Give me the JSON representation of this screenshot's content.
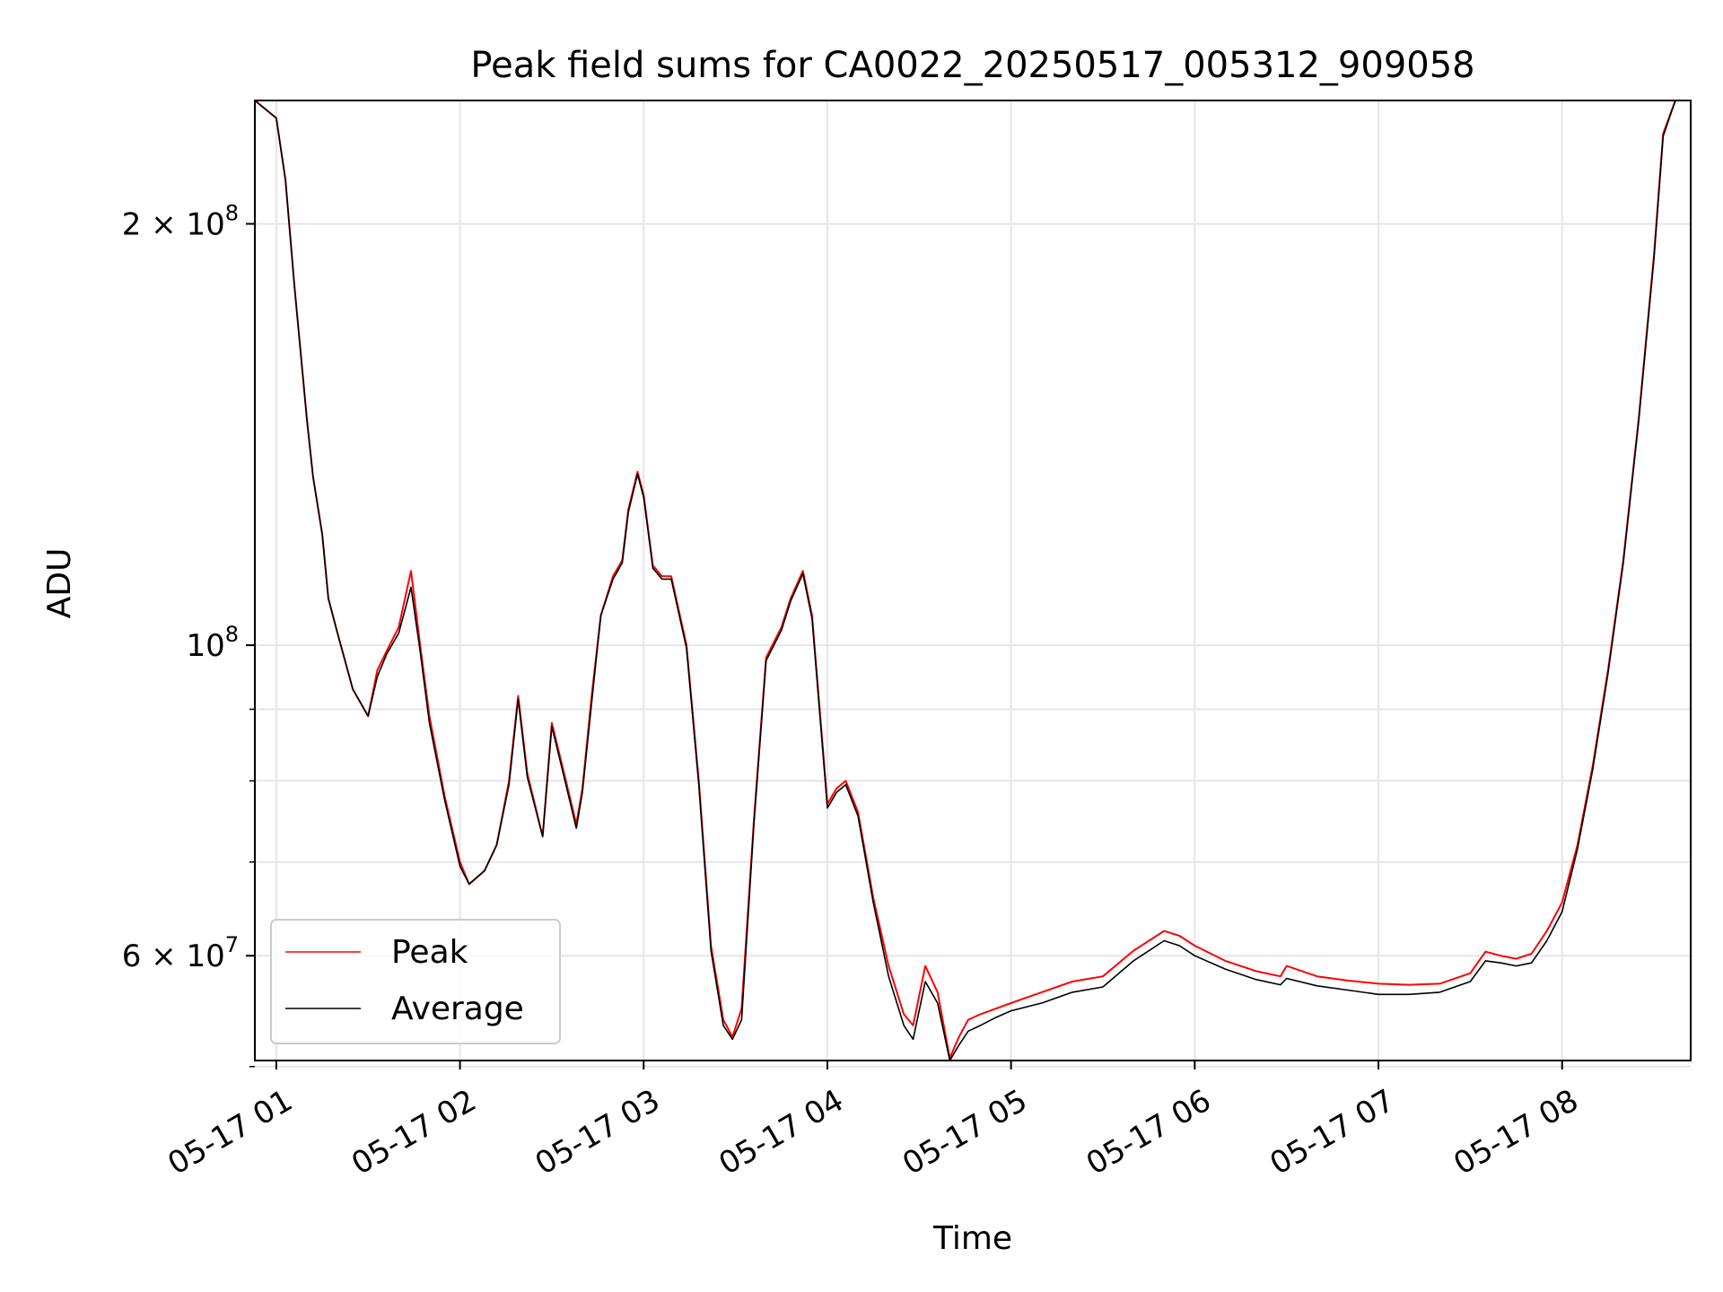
{
  "chart_data": {
    "type": "line",
    "title": "Peak field sums for CA0022_20250517_005312_909058",
    "xlabel": "Time",
    "ylabel": "ADU",
    "yscale": "log",
    "ylim": [
      50500000,
      245000000
    ],
    "xlim_hours": [
      "05-17 00:53",
      "05-17 08:42"
    ],
    "grid": true,
    "legend_position": "lower-left",
    "x_ticks": [
      "05-17 01",
      "05-17 02",
      "05-17 03",
      "05-17 04",
      "05-17 05",
      "05-17 06",
      "05-17 07",
      "05-17 08"
    ],
    "y_ticks_major": [
      {
        "base": "2",
        "exp": "8",
        "value": 200000000
      },
      {
        "base": "",
        "exp": "8",
        "value": 100000000
      },
      {
        "base": "6",
        "exp": "7",
        "value": 60000000
      }
    ],
    "y_ticks_minor": [
      50000000,
      70000000,
      80000000,
      90000000
    ],
    "series": [
      {
        "name": "Peak",
        "color": "#ff0000",
        "x": [
          "05-17 00:53",
          "05-17 01:00",
          "05-17 01:03",
          "05-17 01:06",
          "05-17 01:10",
          "05-17 01:12",
          "05-17 01:15",
          "05-17 01:17",
          "05-17 01:20",
          "05-17 01:25",
          "05-17 01:30",
          "05-17 01:33",
          "05-17 01:36",
          "05-17 01:40",
          "05-17 01:44",
          "05-17 01:47",
          "05-17 01:50",
          "05-17 01:55",
          "05-17 02:00",
          "05-17 02:03",
          "05-17 02:08",
          "05-17 02:12",
          "05-17 02:16",
          "05-17 02:19",
          "05-17 02:22",
          "05-17 02:27",
          "05-17 02:30",
          "05-17 02:34",
          "05-17 02:38",
          "05-17 02:40",
          "05-17 02:43",
          "05-17 02:46",
          "05-17 02:50",
          "05-17 02:53",
          "05-17 02:55",
          "05-17 02:58",
          "05-17 03:00",
          "05-17 03:03",
          "05-17 03:06",
          "05-17 03:09",
          "05-17 03:14",
          "05-17 03:18",
          "05-17 03:22",
          "05-17 03:26",
          "05-17 03:29",
          "05-17 03:32",
          "05-17 03:36",
          "05-17 03:40",
          "05-17 03:45",
          "05-17 03:48",
          "05-17 03:52",
          "05-17 03:55",
          "05-17 04:00",
          "05-17 04:03",
          "05-17 04:06",
          "05-17 04:10",
          "05-17 04:15",
          "05-17 04:20",
          "05-17 04:25",
          "05-17 04:28",
          "05-17 04:32",
          "05-17 04:36",
          "05-17 04:40",
          "05-17 04:43",
          "05-17 04:46",
          "05-17 04:50",
          "05-17 04:55",
          "05-17 05:00",
          "05-17 05:10",
          "05-17 05:20",
          "05-17 05:30",
          "05-17 05:40",
          "05-17 05:50",
          "05-17 05:55",
          "05-17 06:00",
          "05-17 06:10",
          "05-17 06:20",
          "05-17 06:28",
          "05-17 06:30",
          "05-17 06:40",
          "05-17 06:50",
          "05-17 07:00",
          "05-17 07:10",
          "05-17 07:20",
          "05-17 07:30",
          "05-17 07:35",
          "05-17 07:40",
          "05-17 07:45",
          "05-17 07:50",
          "05-17 07:55",
          "05-17 08:00",
          "05-17 08:05",
          "05-17 08:10",
          "05-17 08:15",
          "05-17 08:20",
          "05-17 08:25",
          "05-17 08:30",
          "05-17 08:33",
          "05-17 08:37",
          "05-17 08:42"
        ],
        "y": [
          245000000,
          238000000,
          215000000,
          180000000,
          145000000,
          132000000,
          120000000,
          108000000,
          102000000,
          93000000,
          89000000,
          96000000,
          99000000,
          103000000,
          113000000,
          100000000,
          89000000,
          78000000,
          70000000,
          67500000,
          69000000,
          72000000,
          80000000,
          92000000,
          81000000,
          73000000,
          88000000,
          81000000,
          74500000,
          79000000,
          92000000,
          105000000,
          112000000,
          115000000,
          125000000,
          133000000,
          128000000,
          114000000,
          112000000,
          112000000,
          100000000,
          80000000,
          61000000,
          54000000,
          52500000,
          55000000,
          75000000,
          98000000,
          103000000,
          108000000,
          113000000,
          105000000,
          77000000,
          79000000,
          80000000,
          76000000,
          66000000,
          59000000,
          54500000,
          53500000,
          59000000,
          56500000,
          50700000,
          52500000,
          54000000,
          54500000,
          55000000,
          55500000,
          56500000,
          57500000,
          58000000,
          60500000,
          62500000,
          62000000,
          61000000,
          59500000,
          58500000,
          58000000,
          59000000,
          58000000,
          57600000,
          57300000,
          57200000,
          57300000,
          58300000,
          60400000,
          60000000,
          59700000,
          60200000,
          62500000,
          65500000,
          72000000,
          82000000,
          96000000,
          115000000,
          145000000,
          190000000,
          232000000,
          245000000,
          245000000
        ]
      },
      {
        "name": "Average",
        "color": "#000000",
        "x": [
          "05-17 00:53",
          "05-17 01:00",
          "05-17 01:03",
          "05-17 01:06",
          "05-17 01:10",
          "05-17 01:12",
          "05-17 01:15",
          "05-17 01:17",
          "05-17 01:20",
          "05-17 01:25",
          "05-17 01:30",
          "05-17 01:33",
          "05-17 01:36",
          "05-17 01:40",
          "05-17 01:44",
          "05-17 01:47",
          "05-17 01:50",
          "05-17 01:55",
          "05-17 02:00",
          "05-17 02:03",
          "05-17 02:08",
          "05-17 02:12",
          "05-17 02:16",
          "05-17 02:19",
          "05-17 02:22",
          "05-17 02:27",
          "05-17 02:30",
          "05-17 02:34",
          "05-17 02:38",
          "05-17 02:40",
          "05-17 02:43",
          "05-17 02:46",
          "05-17 02:50",
          "05-17 02:53",
          "05-17 02:55",
          "05-17 02:58",
          "05-17 03:00",
          "05-17 03:03",
          "05-17 03:06",
          "05-17 03:09",
          "05-17 03:14",
          "05-17 03:18",
          "05-17 03:22",
          "05-17 03:26",
          "05-17 03:29",
          "05-17 03:32",
          "05-17 03:36",
          "05-17 03:40",
          "05-17 03:45",
          "05-17 03:48",
          "05-17 03:52",
          "05-17 03:55",
          "05-17 04:00",
          "05-17 04:03",
          "05-17 04:06",
          "05-17 04:10",
          "05-17 04:15",
          "05-17 04:20",
          "05-17 04:25",
          "05-17 04:28",
          "05-17 04:32",
          "05-17 04:36",
          "05-17 04:40",
          "05-17 04:43",
          "05-17 04:46",
          "05-17 04:50",
          "05-17 04:55",
          "05-17 05:00",
          "05-17 05:10",
          "05-17 05:20",
          "05-17 05:30",
          "05-17 05:40",
          "05-17 05:50",
          "05-17 05:55",
          "05-17 06:00",
          "05-17 06:10",
          "05-17 06:20",
          "05-17 06:28",
          "05-17 06:30",
          "05-17 06:40",
          "05-17 06:50",
          "05-17 07:00",
          "05-17 07:10",
          "05-17 07:20",
          "05-17 07:30",
          "05-17 07:35",
          "05-17 07:40",
          "05-17 07:45",
          "05-17 07:50",
          "05-17 07:55",
          "05-17 08:00",
          "05-17 08:05",
          "05-17 08:10",
          "05-17 08:15",
          "05-17 08:20",
          "05-17 08:25",
          "05-17 08:30",
          "05-17 08:33",
          "05-17 08:37",
          "05-17 08:42"
        ],
        "y": [
          245000000,
          238000000,
          215000000,
          180000000,
          145000000,
          132000000,
          120000000,
          108000000,
          102000000,
          93000000,
          89000000,
          95000000,
          98500000,
          102000000,
          110000000,
          99000000,
          88000000,
          77500000,
          69500000,
          67500000,
          69000000,
          72000000,
          79500000,
          91500000,
          80500000,
          73000000,
          87500000,
          80500000,
          74000000,
          78500000,
          91000000,
          105000000,
          111500000,
          114500000,
          124500000,
          132500000,
          127500000,
          113500000,
          111500000,
          111500000,
          99500000,
          79500000,
          60500000,
          53500000,
          52300000,
          54000000,
          74500000,
          97500000,
          102500000,
          107500000,
          112500000,
          104500000,
          76500000,
          78500000,
          79500000,
          75500000,
          65500000,
          58000000,
          53500000,
          52300000,
          57500000,
          55500000,
          50500000,
          51800000,
          53000000,
          53500000,
          54200000,
          54800000,
          55500000,
          56500000,
          57000000,
          59500000,
          61500000,
          61000000,
          60000000,
          58700000,
          57700000,
          57200000,
          57800000,
          57100000,
          56700000,
          56300000,
          56300000,
          56500000,
          57500000,
          59500000,
          59300000,
          59000000,
          59300000,
          61500000,
          64500000,
          71500000,
          81500000,
          95500000,
          114500000,
          144500000,
          189000000,
          231000000,
          245000000,
          245000000
        ]
      }
    ]
  }
}
